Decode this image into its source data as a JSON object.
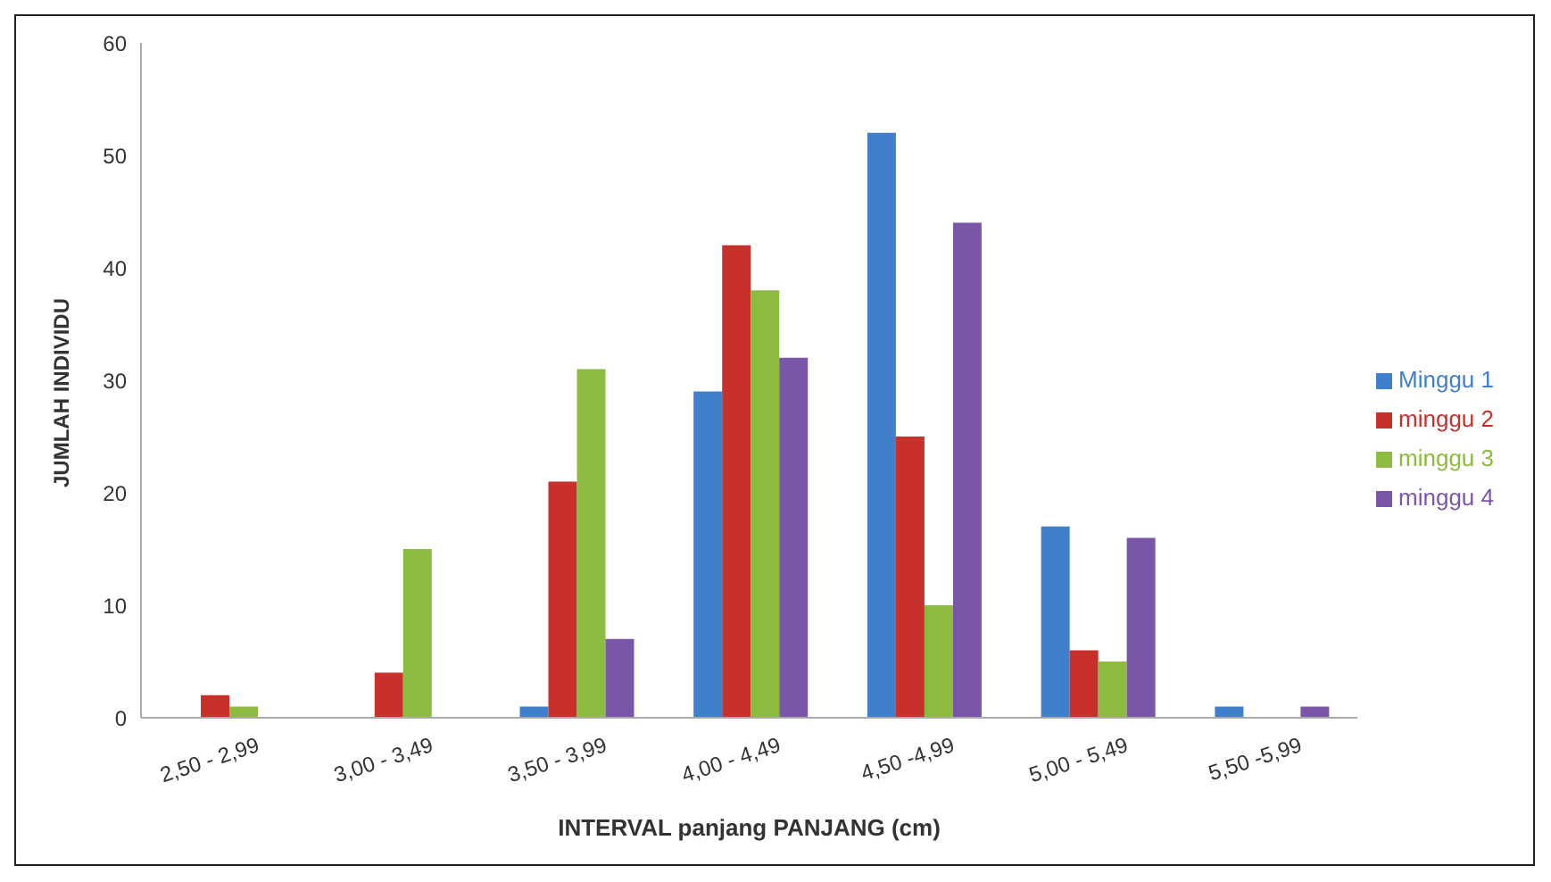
{
  "chart_data": {
    "type": "bar",
    "xlabel": "INTERVAL  panjang PANJANG (cm)",
    "ylabel": "JUMLAH INDIVIDU",
    "categories": [
      "2,50 - 2,99",
      "3,00 - 3,49",
      "3,50 - 3,99",
      "4,00 - 4,49",
      "4,50 -4,99",
      "5,00 - 5,49",
      "5,50 -5,99"
    ],
    "series": [
      {
        "name": "Minggu 1",
        "color": "#3f7fcc",
        "values": [
          0,
          0,
          1,
          29,
          52,
          17,
          1
        ]
      },
      {
        "name": "minggu 2",
        "color": "#c8302b",
        "values": [
          2,
          4,
          21,
          42,
          25,
          6,
          0
        ]
      },
      {
        "name": "minggu 3",
        "color": "#8dbb3f",
        "values": [
          1,
          15,
          31,
          38,
          10,
          5,
          0
        ]
      },
      {
        "name": "minggu 4",
        "color": "#7a56a8",
        "values": [
          0,
          0,
          7,
          32,
          44,
          16,
          1
        ]
      }
    ],
    "ylim": [
      0,
      60
    ],
    "yticks": [
      0,
      10,
      20,
      30,
      40,
      50,
      60
    ],
    "grid": false,
    "legend": "right"
  }
}
